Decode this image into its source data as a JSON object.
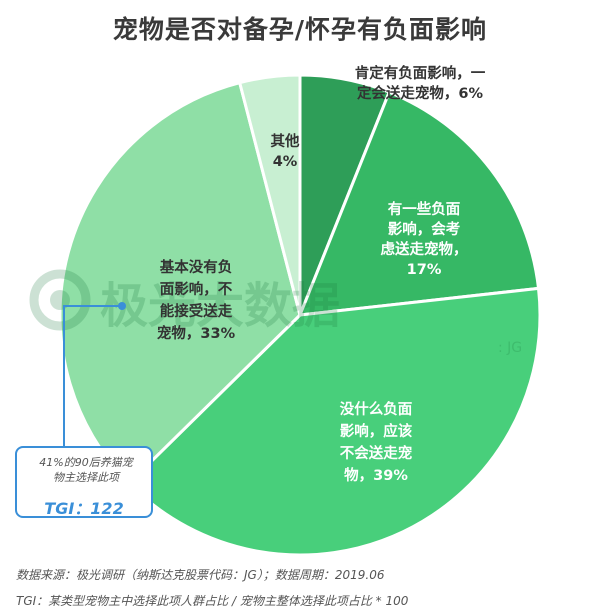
{
  "title": "宠物是否对备孕/怀孕有负面影响",
  "chart_data": {
    "type": "pie",
    "title": "宠物是否对备孕/怀孕有负面影响",
    "slices": [
      {
        "label_lines": [
          "肯定有负面影响，一",
          "定会送走宠物，6%"
        ],
        "value": 6,
        "color": "#2e9e58"
      },
      {
        "label_lines": [
          "有一些负面",
          "影响，会考",
          "虑送走宠物，",
          "17%"
        ],
        "value": 17,
        "color": "#36b865"
      },
      {
        "label_lines": [
          "没什么负面",
          "影响，应该",
          "不会送走宠",
          "物，39%"
        ],
        "value": 39,
        "color": "#48cf7b"
      },
      {
        "label_lines": [
          "基本没有负",
          "面影响，不",
          "能接受送走",
          "宠物，33%"
        ],
        "value": 33,
        "color": "#8fdfa6"
      },
      {
        "label_lines": [
          "其他",
          "4%"
        ],
        "value": 4,
        "color": "#c8efd2"
      }
    ]
  },
  "callout": {
    "text_line1": "41%的90后养猫宠",
    "text_line2": "物主选择此项",
    "tgi": "TGI：122"
  },
  "watermark": {
    "brand": "极光大数据",
    "suffix": ": JG"
  },
  "footer": {
    "source": "数据来源：极光调研（纳斯达克股票代码：JG）；数据周期：2019.06",
    "tgi_note": "TGI：某类型宠物主中选择此项人群占比 / 宠物主整体选择此项占比 * 100"
  },
  "colors": {
    "callout_border": "#3a8fd8",
    "label_dark": "#333333",
    "label_light": "#ffffff"
  }
}
